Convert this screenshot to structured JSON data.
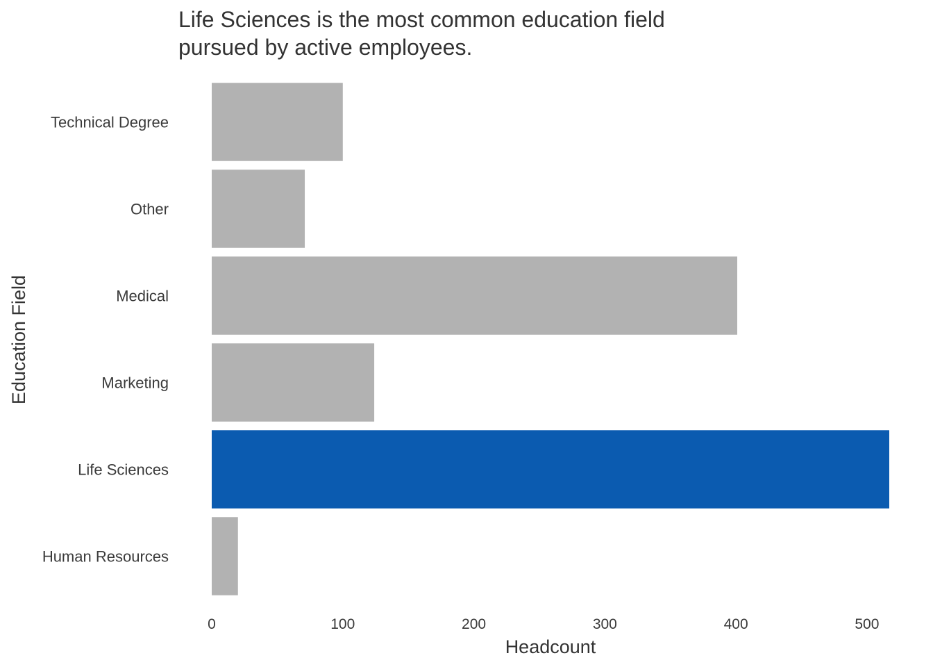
{
  "chart_data": {
    "type": "bar",
    "orientation": "horizontal",
    "title": "Life Sciences is the most common education field pursued by active employees.",
    "title_lines": [
      "Life Sciences is the most common education field",
      "pursued by active employees."
    ],
    "xlabel": "Headcount",
    "ylabel": "Education Field",
    "categories": [
      "Human Resources",
      "Life Sciences",
      "Marketing",
      "Medical",
      "Other",
      "Technical Degree"
    ],
    "values": [
      20,
      517,
      124,
      401,
      71,
      100
    ],
    "highlight": "Life Sciences",
    "xlim": [
      0,
      517
    ],
    "xticks": [
      0,
      100,
      200,
      300,
      400,
      500
    ],
    "grid": false,
    "legend": "none",
    "colors": {
      "default_bar": "#b2b2b2",
      "highlight_bar": "#0b5bb0",
      "text": "#333333"
    }
  }
}
